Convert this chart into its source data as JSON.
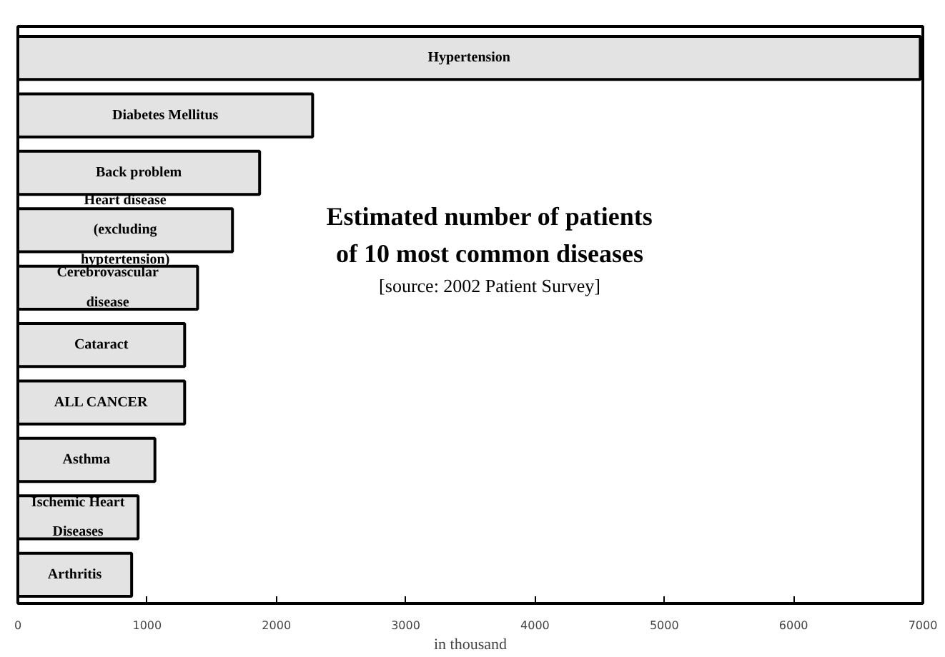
{
  "chart_data": {
    "type": "bar",
    "orientation": "horizontal",
    "title": "Estimated number of patients\nof 10 most common diseases",
    "subtitle": "[source: 2002 Patient Survey]",
    "xlabel": "in thousand",
    "categories": [
      "Hypertension",
      "Diabetes Mellitus",
      "Back problem",
      "Heart disease\n(excluding\nhyptertension)",
      "Cerebrovascular\ndisease",
      "Cataract",
      "ALL CANCER",
      "Asthma",
      "Ischemic Heart\nDiseases",
      "Arthritis"
    ],
    "values": [
      6980,
      2280,
      1870,
      1660,
      1390,
      1290,
      1290,
      1060,
      930,
      880
    ],
    "color": "#e3e3e3",
    "xlim": [
      0,
      7000
    ],
    "xticks": [
      0,
      1000,
      2000,
      3000,
      4000,
      5000,
      6000,
      7000
    ],
    "tick_labels": "x",
    "grid": false
  }
}
